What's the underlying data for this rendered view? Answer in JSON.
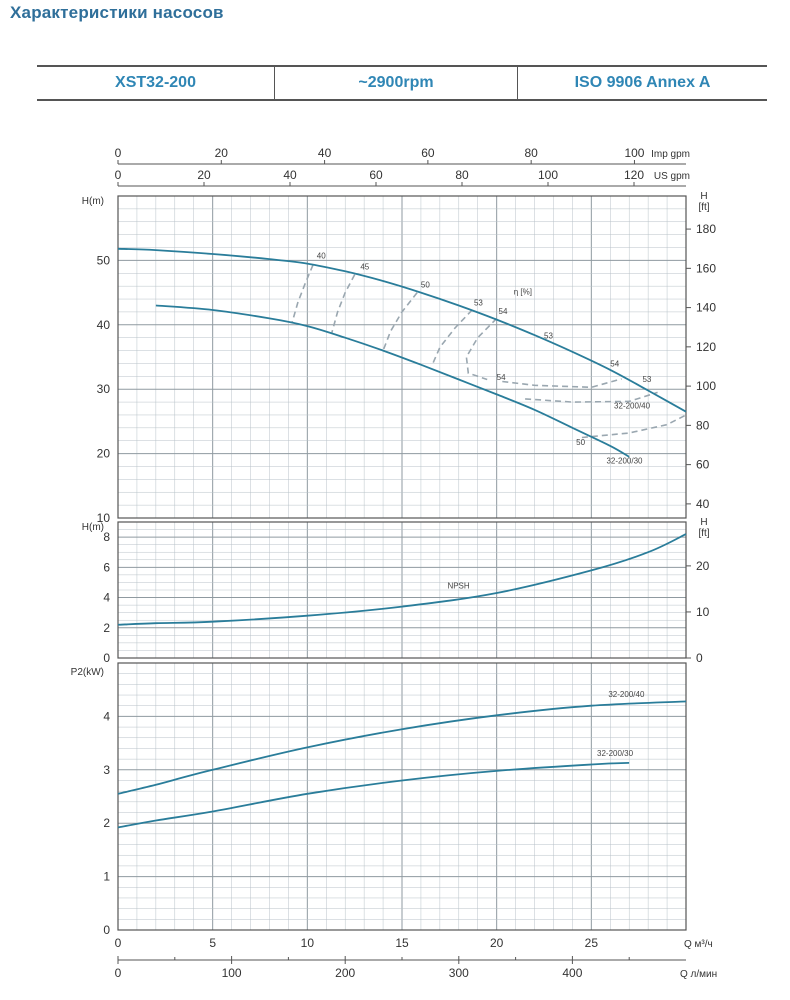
{
  "page": {
    "title": "Характеристики насосов",
    "header": [
      "XST32-200",
      "~2900rpm",
      "ISO 9906   Annex A"
    ]
  },
  "chart_data": [
    {
      "type": "line",
      "panel": "head",
      "ylabel": "H(m)",
      "ylabel_right": "H [ft]",
      "eff_label": "η [%]",
      "xlim": [
        0,
        30
      ],
      "ylim": [
        10,
        60
      ],
      "yticks": [
        10,
        20,
        30,
        40,
        50
      ],
      "yticks_right": [
        40,
        60,
        80,
        100,
        120,
        140,
        160,
        180
      ],
      "top_axes": [
        {
          "label": "Imp gpm",
          "ticks": [
            0,
            20,
            40,
            60,
            80,
            100
          ],
          "per_m3h": 3.666
        },
        {
          "label": "US gpm",
          "ticks": [
            0,
            20,
            40,
            60,
            80,
            100,
            120
          ],
          "per_m3h": 4.403
        }
      ],
      "series": [
        {
          "name": "32-200/40",
          "x": [
            0,
            2,
            5,
            8,
            10,
            12,
            14,
            16,
            18,
            20,
            22,
            24,
            26,
            28,
            30
          ],
          "y": [
            51.8,
            51.6,
            51.0,
            50.2,
            49.5,
            48.3,
            46.8,
            45.0,
            43.0,
            40.8,
            38.4,
            35.8,
            33.0,
            29.8,
            26.5
          ]
        },
        {
          "name": "32-200/30",
          "x": [
            2,
            5,
            8,
            10,
            12,
            14,
            16,
            18,
            20,
            22,
            24,
            26,
            27
          ],
          "y": [
            43.0,
            42.3,
            41.0,
            39.8,
            38.0,
            36.0,
            33.8,
            31.5,
            29.2,
            26.8,
            24.0,
            21.2,
            19.5
          ]
        }
      ],
      "eff_curves": [
        {
          "label": "40",
          "x": [
            10.3,
            9.9,
            9.5,
            9.2
          ],
          "y": [
            49.3,
            46.5,
            43.5,
            40.4
          ]
        },
        {
          "label": "45",
          "x": [
            12.5,
            12.0,
            11.6,
            11.3
          ],
          "y": [
            47.8,
            45.0,
            42.0,
            38.8
          ]
        },
        {
          "label": "50",
          "x": [
            15.8,
            15.0,
            14.4,
            14.0
          ],
          "y": [
            45.0,
            42.0,
            39.0,
            36.0
          ]
        },
        {
          "label": "53",
          "x": [
            18.7,
            17.8,
            17.0,
            16.6
          ],
          "y": [
            42.3,
            39.5,
            36.5,
            33.8
          ]
        },
        {
          "label": "54",
          "x": [
            20.0,
            19.0,
            18.4,
            18.5,
            19.5
          ],
          "y": [
            41.0,
            38.0,
            35.0,
            32.5,
            31.5
          ]
        },
        {
          "label": "54",
          "x": [
            20.3,
            22.0,
            25.0,
            26.6
          ],
          "y": [
            31.2,
            30.6,
            30.3,
            31.6
          ]
        },
        {
          "label": "53",
          "x": [
            21.5,
            24.0,
            27.0,
            28.5
          ],
          "y": [
            28.5,
            28.0,
            28.1,
            29.5
          ]
        },
        {
          "label": "50",
          "x": [
            24.5,
            27.0,
            29.0,
            30.0
          ],
          "y": [
            22.5,
            23.2,
            24.5,
            26.0
          ]
        }
      ],
      "point_labels": [
        {
          "text": "40",
          "x": 10.5,
          "y": 50.3
        },
        {
          "text": "45",
          "x": 12.8,
          "y": 48.6
        },
        {
          "text": "50",
          "x": 16.0,
          "y": 45.8
        },
        {
          "text": "53",
          "x": 18.8,
          "y": 43.0
        },
        {
          "text": "54",
          "x": 20.1,
          "y": 41.7
        },
        {
          "text": "η [%]",
          "x": 20.9,
          "y": 44.7
        },
        {
          "text": "53",
          "x": 22.5,
          "y": 37.9
        },
        {
          "text": "54",
          "x": 26.0,
          "y": 33.5
        },
        {
          "text": "53",
          "x": 27.7,
          "y": 31.1
        },
        {
          "text": "54",
          "x": 20.0,
          "y": 31.4
        },
        {
          "text": "32-200/40",
          "x": 26.2,
          "y": 27.0
        },
        {
          "text": "50",
          "x": 24.2,
          "y": 21.3
        },
        {
          "text": "32-200/30",
          "x": 25.8,
          "y": 18.5
        }
      ]
    },
    {
      "type": "line",
      "panel": "npsh",
      "ylabel": "H(m)",
      "ylabel_right": "H [ft]",
      "xlim": [
        0,
        30
      ],
      "ylim": [
        0,
        9
      ],
      "yticks": [
        0,
        2,
        4,
        6,
        8
      ],
      "yticks_right": [
        0,
        10,
        20
      ],
      "series": [
        {
          "name": "NPSH",
          "x": [
            0,
            2,
            5,
            10,
            15,
            20,
            25,
            28,
            30
          ],
          "y": [
            2.2,
            2.3,
            2.4,
            2.8,
            3.4,
            4.3,
            5.8,
            7.0,
            8.2
          ]
        }
      ],
      "point_labels": [
        {
          "text": "NPSH",
          "x": 17.4,
          "y": 4.6
        }
      ]
    },
    {
      "type": "line",
      "panel": "power",
      "ylabel": "P2(kW)",
      "xlim": [
        0,
        30
      ],
      "ylim": [
        0,
        5
      ],
      "yticks": [
        0,
        1,
        2,
        3,
        4
      ],
      "series": [
        {
          "name": "32-200/40",
          "x": [
            0,
            2,
            5,
            10,
            15,
            20,
            25,
            30
          ],
          "y": [
            2.55,
            2.72,
            3.0,
            3.42,
            3.76,
            4.02,
            4.2,
            4.28
          ]
        },
        {
          "name": "32-200/30",
          "x": [
            0,
            2,
            5,
            10,
            15,
            20,
            25,
            27
          ],
          "y": [
            1.92,
            2.05,
            2.22,
            2.55,
            2.8,
            2.98,
            3.1,
            3.13
          ]
        }
      ],
      "point_labels": [
        {
          "text": "32-200/40",
          "x": 25.9,
          "y": 4.36
        },
        {
          "text": "32-200/30",
          "x": 25.3,
          "y": 3.26
        }
      ],
      "xlabel": "Q  м³/ч",
      "xticks": [
        0,
        5,
        10,
        15,
        20,
        25
      ],
      "xlabel2": "Q  л/мин",
      "xticks2": [
        0,
        100,
        200,
        300,
        400
      ]
    }
  ],
  "colors": {
    "curve": "#2a7d9a",
    "eff": "#9aa7b0",
    "grid": "#b8c2c8",
    "axis": "#555555",
    "text": "#333333"
  }
}
